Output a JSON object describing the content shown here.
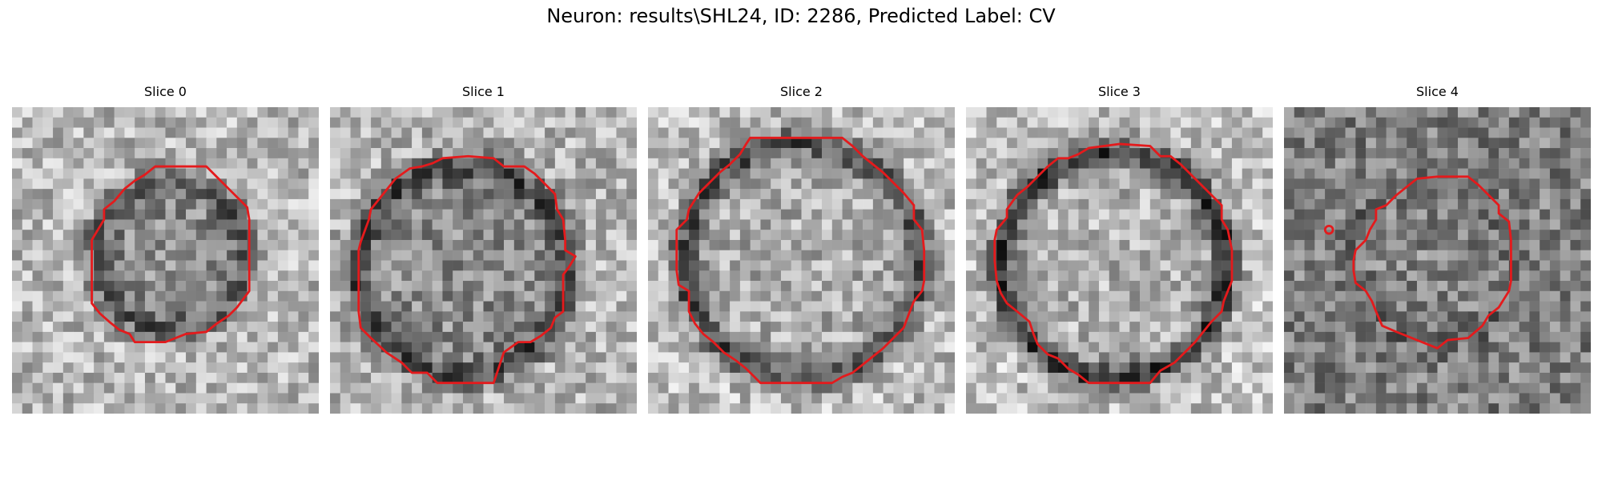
{
  "figure": {
    "title": "Neuron: results\\SHL24, ID: 2286, Predicted Label: CV"
  },
  "colors": {
    "contour": "#e41a1c",
    "background": "#ffffff"
  },
  "panels": [
    {
      "title": "Slice 0"
    },
    {
      "title": "Slice 1"
    },
    {
      "title": "Slice 2"
    },
    {
      "title": "Slice 3"
    },
    {
      "title": "Slice 4"
    }
  ]
}
